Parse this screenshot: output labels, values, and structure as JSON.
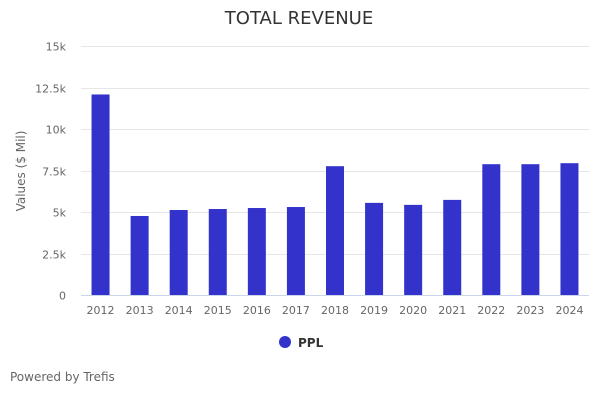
{
  "chart_data": {
    "type": "bar",
    "title": "TOTAL REVENUE",
    "xlabel": "",
    "ylabel": "Values ($ Mil)",
    "categories": [
      "2012",
      "2013",
      "2014",
      "2015",
      "2016",
      "2017",
      "2018",
      "2019",
      "2020",
      "2021",
      "2022",
      "2023",
      "2024"
    ],
    "series": [
      {
        "name": "PPL",
        "color": "#3333cc",
        "values": [
          12080,
          4760,
          5120,
          5180,
          5240,
          5300,
          7760,
          5550,
          5430,
          5730,
          7880,
          7880,
          7940
        ]
      }
    ],
    "ylim": [
      0,
      15000
    ],
    "yticks": [
      0,
      2500,
      5000,
      7500,
      10000,
      12500,
      15000
    ],
    "ytick_labels": [
      "0",
      "2.5k",
      "5k",
      "7.5k",
      "10k",
      "12.5k",
      "15k"
    ],
    "grid": true,
    "legend_position": "bottom-center"
  },
  "credits": "Powered by Trefis"
}
